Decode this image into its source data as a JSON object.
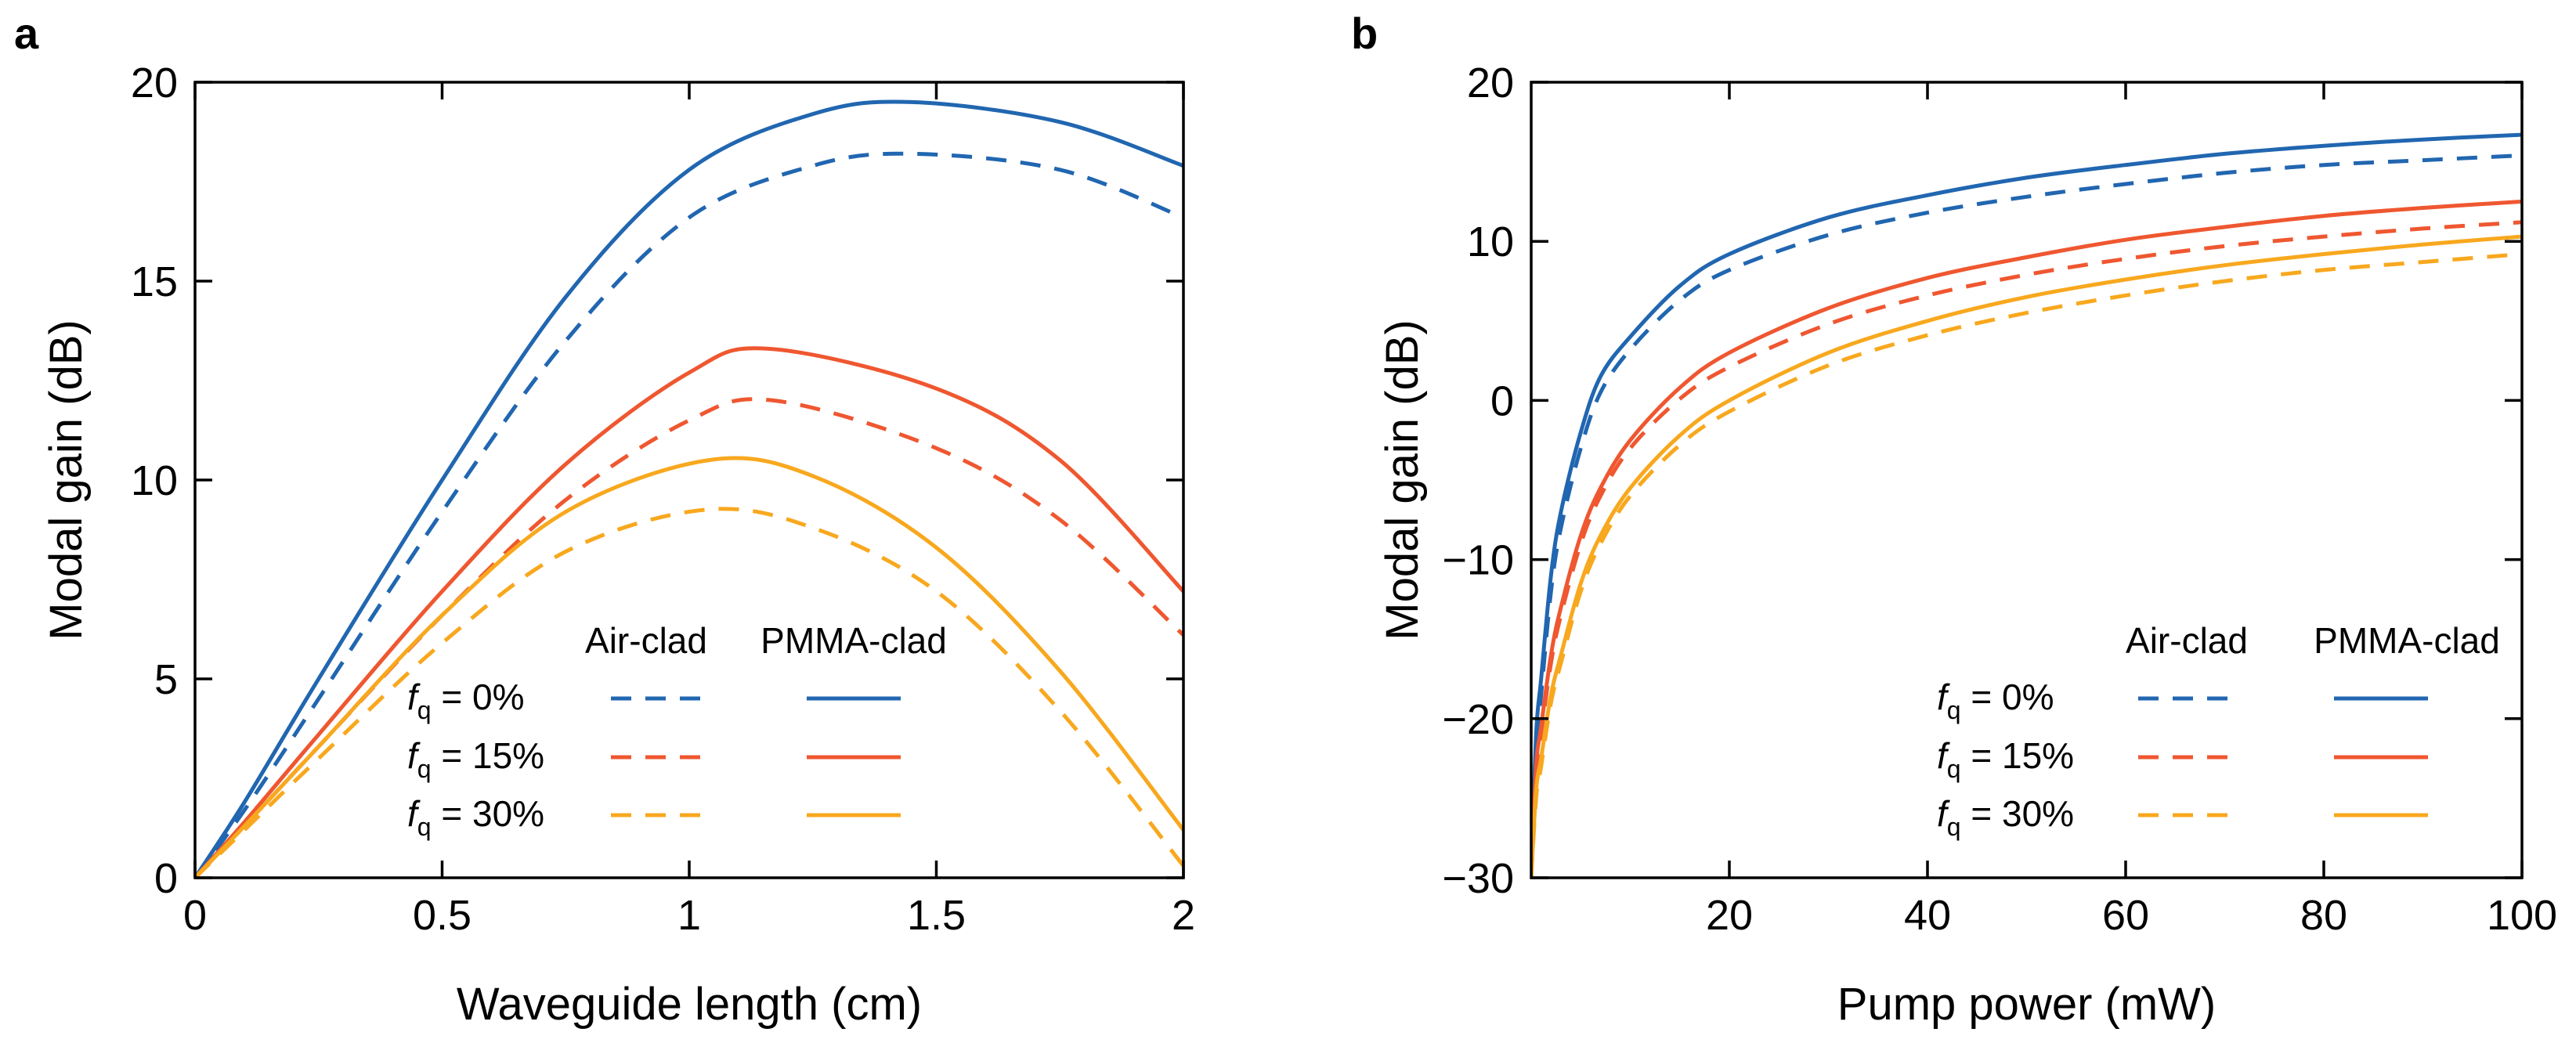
{
  "chart_data": [
    {
      "type": "line",
      "panel_label": "a",
      "xlabel": "Waveguide length (cm)",
      "ylabel": "Modal gain (dB)",
      "xlim": [
        0,
        2
      ],
      "ylim": [
        0,
        20
      ],
      "xticks": [
        0,
        0.5,
        1,
        1.5,
        2
      ],
      "xtick_labels": [
        "0",
        "0.5",
        "1",
        "1.5",
        "2"
      ],
      "yticks": [
        0,
        5,
        10,
        15,
        20
      ],
      "ytick_labels": [
        "0",
        "5",
        "10",
        "15",
        "20"
      ],
      "legend": {
        "position": "lower-right",
        "col_headers": [
          "Air-clad",
          "PMMA-clad"
        ],
        "row_var": "f",
        "row_sub": "q",
        "row_values": [
          " = 0%",
          " = 15%",
          " = 30%"
        ]
      },
      "series": [
        {
          "name": "f_q = 0% PMMA-clad",
          "color": "#2166b0",
          "dash": "solid",
          "x": [
            0,
            0.1,
            0.25,
            0.5,
            0.75,
            1.0,
            1.25,
            1.45,
            1.75,
            2.0
          ],
          "y": [
            0,
            1.9,
            5.0,
            10.0,
            14.6,
            17.8,
            19.2,
            19.5,
            19.0,
            17.9
          ]
        },
        {
          "name": "f_q = 0% Air-clad",
          "color": "#2166b0",
          "dash": "dashed",
          "x": [
            0,
            0.1,
            0.25,
            0.5,
            0.75,
            1.0,
            1.25,
            1.45,
            1.75,
            2.0
          ],
          "y": [
            0,
            1.7,
            4.5,
            9.2,
            13.5,
            16.6,
            17.9,
            18.2,
            17.8,
            16.6
          ]
        },
        {
          "name": "f_q = 15% PMMA-clad",
          "color": "#ef5730",
          "dash": "solid",
          "x": [
            0,
            0.1,
            0.25,
            0.5,
            0.75,
            1.0,
            1.16,
            1.5,
            1.75,
            2.0
          ],
          "y": [
            0,
            1.4,
            3.6,
            7.2,
            10.4,
            12.7,
            13.3,
            12.3,
            10.5,
            7.2
          ]
        },
        {
          "name": "f_q = 15% Air-clad",
          "color": "#ef5730",
          "dash": "dashed",
          "x": [
            0,
            0.1,
            0.25,
            0.5,
            0.75,
            1.0,
            1.17,
            1.5,
            1.75,
            2.0
          ],
          "y": [
            0,
            1.3,
            3.3,
            6.6,
            9.5,
            11.5,
            12.0,
            10.8,
            9.0,
            6.1
          ]
        },
        {
          "name": "f_q = 30% PMMA-clad",
          "color": "#f8a81e",
          "dash": "solid",
          "x": [
            0,
            0.1,
            0.25,
            0.5,
            0.75,
            1.04,
            1.25,
            1.5,
            1.75,
            2.0
          ],
          "y": [
            0,
            1.3,
            3.3,
            6.6,
            9.2,
            10.5,
            10.1,
            8.3,
            5.2,
            1.2
          ]
        },
        {
          "name": "f_q = 30% Air-clad",
          "color": "#f8a81e",
          "dash": "dashed",
          "x": [
            0,
            0.1,
            0.25,
            0.5,
            0.75,
            1.03,
            1.25,
            1.5,
            1.75,
            2.0
          ],
          "y": [
            0,
            1.2,
            3.0,
            5.9,
            8.2,
            9.25,
            8.8,
            7.2,
            4.2,
            0.3
          ]
        }
      ]
    },
    {
      "type": "line",
      "panel_label": "b",
      "xlabel": "Pump power (mW)",
      "ylabel": "Modal gain (dB)",
      "xlim": [
        0,
        100
      ],
      "ylim": [
        -30,
        20
      ],
      "xticks": [
        20,
        40,
        60,
        80,
        100
      ],
      "xtick_labels": [
        "20",
        "40",
        "60",
        "80",
        "100"
      ],
      "yticks": [
        -30,
        -20,
        -10,
        0,
        10,
        20
      ],
      "ytick_labels": [
        "−30",
        "−20",
        "−10",
        "0",
        "10",
        "20"
      ],
      "legend": {
        "position": "lower-right",
        "col_headers": [
          "Air-clad",
          "PMMA-clad"
        ],
        "row_var": "f",
        "row_sub": "q",
        "row_values": [
          " = 0%",
          " = 15%",
          " = 30%"
        ]
      },
      "series": [
        {
          "name": "f_q = 0% PMMA-clad",
          "color": "#2166b0",
          "dash": "solid",
          "x": [
            0,
            0.5,
            1,
            2,
            3,
            5,
            7,
            10,
            15,
            20,
            30,
            40,
            50,
            60,
            70,
            80,
            90,
            100
          ],
          "y": [
            -30,
            -21,
            -17.5,
            -11,
            -7,
            -2,
            1.5,
            4,
            7.2,
            9.2,
            11.5,
            12.9,
            14.0,
            14.8,
            15.5,
            16.0,
            16.4,
            16.7
          ]
        },
        {
          "name": "f_q = 0% Air-clad",
          "color": "#2166b0",
          "dash": "dashed",
          "x": [
            0,
            0.5,
            1,
            2,
            3,
            5,
            7,
            10,
            15,
            20,
            30,
            40,
            50,
            60,
            70,
            80,
            90,
            100
          ],
          "y": [
            -30,
            -22,
            -18.5,
            -12,
            -8,
            -3,
            0.5,
            3.2,
            6.3,
            8.2,
            10.4,
            11.8,
            12.8,
            13.6,
            14.3,
            14.8,
            15.1,
            15.4
          ]
        },
        {
          "name": "f_q = 15% PMMA-clad",
          "color": "#ef5730",
          "dash": "solid",
          "x": [
            0,
            0.5,
            1,
            2,
            3,
            5,
            7,
            10,
            15,
            20,
            30,
            40,
            50,
            60,
            70,
            80,
            90,
            100
          ],
          "y": [
            -30,
            -23,
            -20.5,
            -16,
            -13,
            -8.5,
            -5.5,
            -2.5,
            0.8,
            3.0,
            5.8,
            7.7,
            9.0,
            10.1,
            10.9,
            11.6,
            12.1,
            12.5
          ]
        },
        {
          "name": "f_q = 15% Air-clad",
          "color": "#ef5730",
          "dash": "dashed",
          "x": [
            0,
            0.5,
            1,
            2,
            3,
            5,
            7,
            10,
            15,
            20,
            30,
            40,
            50,
            60,
            70,
            80,
            90,
            100
          ],
          "y": [
            -30,
            -23.5,
            -21,
            -16.5,
            -13.5,
            -9,
            -6,
            -3,
            0.1,
            2.1,
            4.8,
            6.6,
            7.9,
            8.9,
            9.7,
            10.3,
            10.8,
            11.2
          ]
        },
        {
          "name": "f_q = 30% PMMA-clad",
          "color": "#f8a81e",
          "dash": "solid",
          "x": [
            0,
            0.5,
            1,
            2,
            3,
            5,
            7,
            10,
            15,
            20,
            30,
            40,
            50,
            60,
            70,
            80,
            90,
            100
          ],
          "y": [
            -30,
            -24.5,
            -22.5,
            -18.5,
            -16,
            -11.5,
            -8.5,
            -5.5,
            -2.2,
            0.0,
            3.0,
            5.0,
            6.5,
            7.6,
            8.5,
            9.2,
            9.8,
            10.3
          ]
        },
        {
          "name": "f_q = 30% Air-clad",
          "color": "#f8a81e",
          "dash": "dashed",
          "x": [
            0,
            0.5,
            1,
            2,
            3,
            5,
            7,
            10,
            15,
            20,
            30,
            40,
            50,
            60,
            70,
            80,
            90,
            100
          ],
          "y": [
            -30,
            -25,
            -23,
            -19,
            -16.5,
            -12,
            -9,
            -6,
            -2.8,
            -0.7,
            2.2,
            4.1,
            5.5,
            6.6,
            7.5,
            8.2,
            8.7,
            9.2
          ]
        }
      ]
    }
  ]
}
